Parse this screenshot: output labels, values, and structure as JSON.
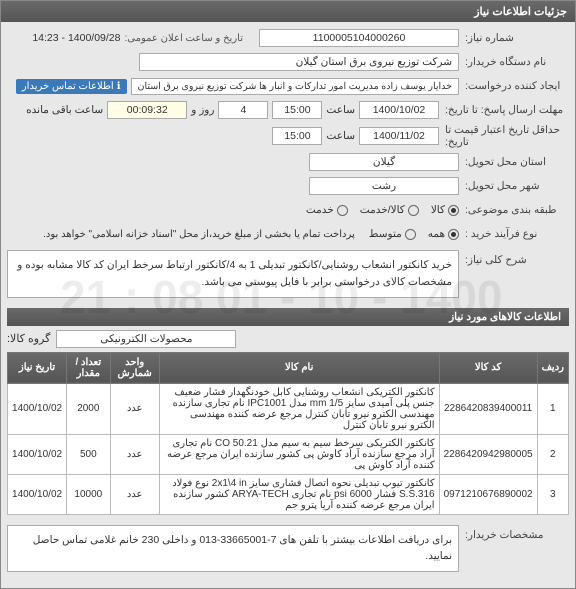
{
  "header": {
    "title": "جزئیات اطلاعات نیاز"
  },
  "form": {
    "need_no_label": "شماره نیاز:",
    "need_no": "1100005104000260",
    "announce_label": "تاریخ و ساعت اعلان عمومی:",
    "announce_value": "1400/09/28 - 14:23",
    "buyer_label": "نام دستگاه خریدار:",
    "buyer_value": "شرکت توزیع نیروی برق استان گیلان",
    "creator_label": "ایجاد کننده درخواست:",
    "creator_value": "خدایار یوسف زاده مدیریت امور تدارکات و انبار ها شرکت توزیع نیروی برق استان",
    "creator_badge": "اطلاعات تماس خریدار",
    "deadline_label": "مهلت ارسال پاسخ: تا تاریخ:",
    "deadline_date": "1400/10/02",
    "time_label": "ساعت",
    "deadline_time": "15:00",
    "days_left": "4",
    "days_label": "روز و",
    "remain_time": "00:09:32",
    "remain_label": "ساعت باقی مانده",
    "valid_label": "حداقل تاریخ اعتبار قیمت تا تاریخ:",
    "valid_date": "1400/11/02",
    "valid_time": "15:00",
    "province_label": "استان محل تحویل:",
    "province": "گیلان",
    "city_label": "شهر محل تحویل:",
    "city": "رشت",
    "category_label": "طبقه بندی موضوعی:",
    "cat_options": [
      {
        "label": "کالا",
        "checked": true
      },
      {
        "label": "کالا/خدمت",
        "checked": false
      },
      {
        "label": "خدمت",
        "checked": false
      }
    ],
    "process_label": "نوع فرآیند خرید :",
    "process_options": [
      {
        "label": "همه",
        "checked": true
      },
      {
        "label": "متوسط",
        "checked": false
      }
    ],
    "process_note": "پرداخت تمام یا بخشی از مبلغ خرید،از محل \"اسناد خزانه اسلامی\" خواهد بود."
  },
  "sections": {
    "desc_title": "شرح کلی نیاز:",
    "desc_text": "خرید کانکتور انشعاب روشنایی/کانکتور تبدیلی 1 به 4/کانکتور ارتباط سرخط ایران کد کالا مشابه بوده و مشخصات کالای درخواستی برابر با فایل پیوستی می باشد.",
    "items_title": "اطلاعات کالاهای مورد نیاز",
    "group_label": "گروه کالا:",
    "group_value": "محصولات الکترونیکی"
  },
  "table": {
    "headers": [
      "ردیف",
      "کد کالا",
      "نام کالا",
      "واحد شمارش",
      "تعداد / مقدار",
      "تاریخ نیاز"
    ],
    "rows": [
      {
        "n": "1",
        "code": "2286420839400011",
        "name": "کانکتور الکتریکی انشعاب روشنایی کابل خودنگهدار فشار ضعیف جنس پلی آمیدی سایز mm 1/5 مدل IPC1001 نام تجاری سازنده مهندسی الکترو نیرو تابان کنترل مرجع عرضه کننده مهندسی الکترو نیرو تابان کنترل",
        "unit": "عدد",
        "qty": "2000",
        "date": "1400/10/02"
      },
      {
        "n": "2",
        "code": "2286420942980005",
        "name": "کانکتور الکتریکی سرخط سیم به سیم مدل CO 50.21 نام تجاری آراد مرجع سازنده آراد کاوش پی کشور سازنده ایران مرجع عرضه کننده آراد کاوش پی",
        "unit": "عدد",
        "qty": "500",
        "date": "1400/10/02"
      },
      {
        "n": "3",
        "code": "0971210676890002",
        "name": "کانکتور تیوپ تبدیلی نحوه اتصال فشاری سایز 2x1\\4 in نوع فولاد S.S.316 فشار psi 6000 نام تجاری ARYA-TECH کشور سازنده ایران مرجع عرضه کننده آریا پترو جم",
        "unit": "عدد",
        "qty": "10000",
        "date": "1400/10/02"
      }
    ]
  },
  "footer": {
    "label": "مشخصات خریدار:",
    "text": "برای دریافت اطلاعات بیشتر با تلفن های 7-33665001-013 و داخلی 230 خانم غلامی تماس حاصل نمایید."
  },
  "watermark": "1400 - 10 - 01  08 : 21"
}
